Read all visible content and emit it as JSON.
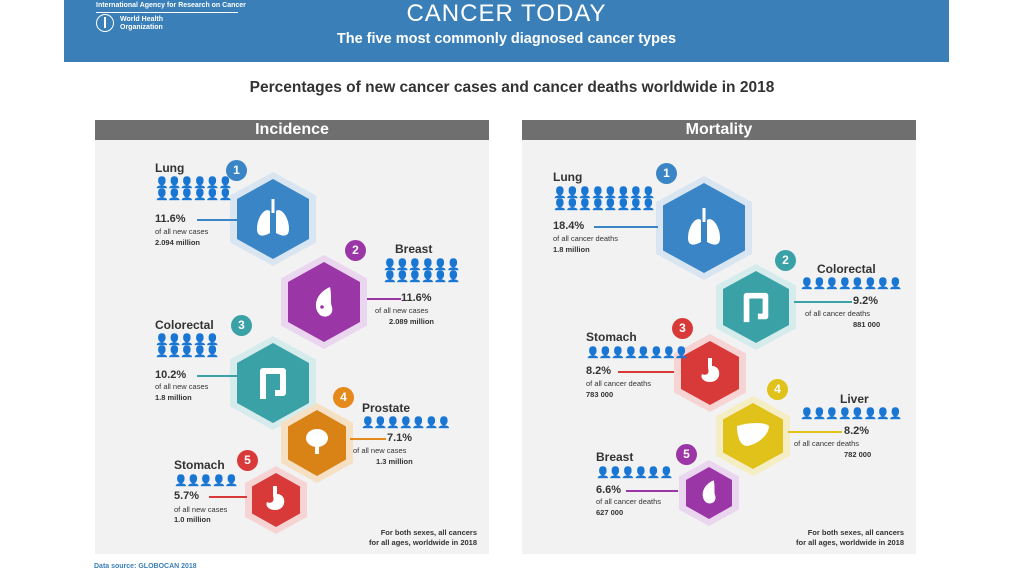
{
  "header": {
    "org": "International Agency for Research on Cancer",
    "who": [
      "World Health",
      "Organization"
    ],
    "title": "CANCER TODAY",
    "subtitle": "The five most commonly diagnosed cancer types"
  },
  "subtitle": "Percentages of new cancer cases and cancer deaths worldwide in 2018",
  "incidence": {
    "heading": "Incidence",
    "items": [
      {
        "rank": "1",
        "name": "Lung",
        "pct": "11.6%",
        "label": "of all new cases",
        "count": "2.094 million",
        "color": "#3a85c6",
        "icon": "lungs-icon"
      },
      {
        "rank": "2",
        "name": "Breast",
        "pct": "11.6%",
        "label": "of all new cases",
        "count": "2.089 million",
        "color": "#9b36a6",
        "icon": "breast-icon"
      },
      {
        "rank": "3",
        "name": "Colorectal",
        "pct": "10.2%",
        "label": "of all new cases",
        "count": "1.8 million",
        "color": "#3aa1a6",
        "icon": "colon-icon"
      },
      {
        "rank": "4",
        "name": "Prostate",
        "pct": "7.1%",
        "label": "of all new cases",
        "count": "1.3 million",
        "color": "#e58a1a",
        "icon": "prostate-icon"
      },
      {
        "rank": "5",
        "name": "Stomach",
        "pct": "5.7%",
        "label": "of all new cases",
        "count": "1.0 million",
        "color": "#d83a3a",
        "icon": "stomach-icon"
      }
    ],
    "footer": [
      "For both sexes, all cancers",
      "for all ages, worldwide in 2018"
    ]
  },
  "mortality": {
    "heading": "Mortality",
    "items": [
      {
        "rank": "1",
        "name": "Lung",
        "pct": "18.4%",
        "label": "of all cancer deaths",
        "count": "1.8 million",
        "color": "#3a85c6",
        "icon": "lungs-icon"
      },
      {
        "rank": "2",
        "name": "Colorectal",
        "pct": "9.2%",
        "label": "of all cancer deaths",
        "count": "881 000",
        "color": "#3aa1a6",
        "icon": "colon-icon"
      },
      {
        "rank": "3",
        "name": "Stomach",
        "pct": "8.2%",
        "label": "of all cancer deaths",
        "count": "783 000",
        "color": "#d83a3a",
        "icon": "stomach-icon"
      },
      {
        "rank": "4",
        "name": "Liver",
        "pct": "8.2%",
        "label": "of all cancer deaths",
        "count": "782 000",
        "color": "#e0c21a",
        "icon": "liver-icon"
      },
      {
        "rank": "5",
        "name": "Breast",
        "pct": "6.6%",
        "label": "of all cancer deaths",
        "count": "627 000",
        "color": "#9b36a6",
        "icon": "breast-icon"
      }
    ],
    "footer": [
      "For both sexes, all cancers",
      "for all ages, worldwide in 2018"
    ]
  },
  "source": "Data source: GLOBOCAN 2018"
}
